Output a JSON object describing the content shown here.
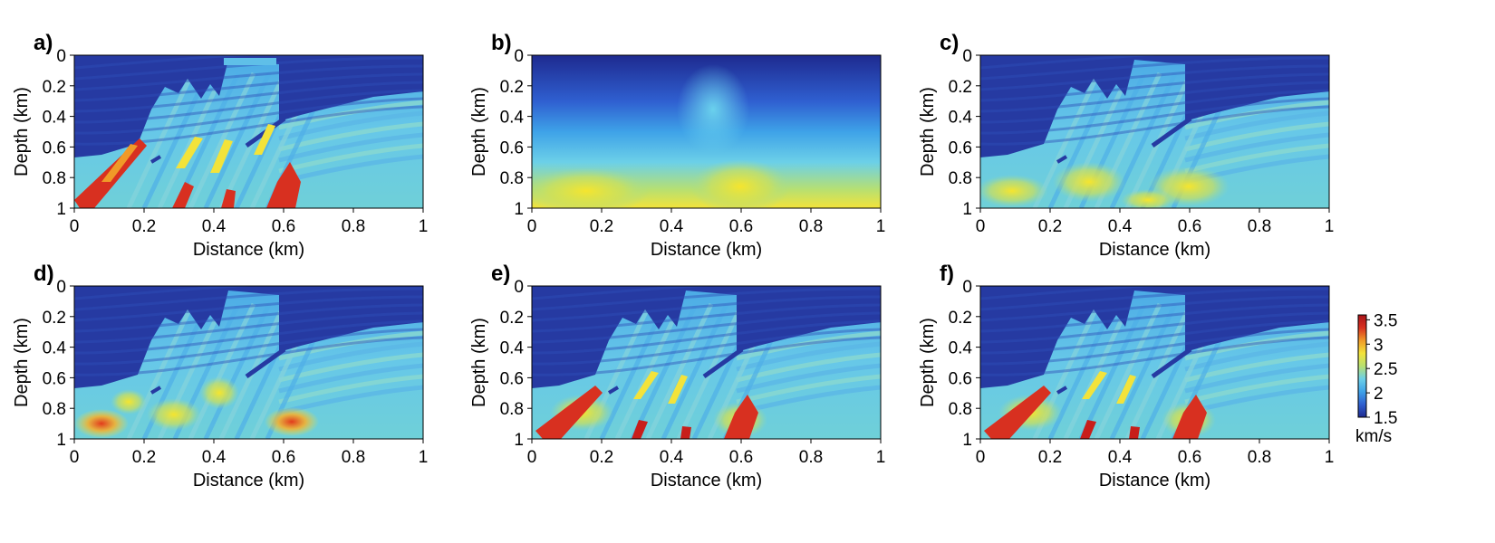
{
  "chart_data": {
    "type": "heatmap",
    "layout": "2x3 grid of velocity model panels",
    "x_label": "Distance (km)",
    "y_label": "Depth (km)",
    "x_ticks": [
      "0",
      "0.2",
      "0.4",
      "0.6",
      "0.8",
      "1"
    ],
    "y_ticks": [
      "0",
      "0.2",
      "0.4",
      "0.6",
      "0.8",
      "1"
    ],
    "xlim": [
      0,
      1
    ],
    "ylim": [
      0,
      1
    ],
    "y_axis_reversed": true,
    "colormap": "jet",
    "colorbar": {
      "range": [
        1.5,
        3.6
      ],
      "ticks": [
        "1.5",
        "2",
        "2.5",
        "3",
        "3.5"
      ],
      "unit": "km/s",
      "colors": [
        "#1e2a8f",
        "#2f5fd0",
        "#3ea2e8",
        "#6cd0e8",
        "#b8e070",
        "#f3e33a",
        "#f09a28",
        "#d83020",
        "#a8141a"
      ]
    },
    "panels": [
      {
        "label": "a)",
        "variant": "true"
      },
      {
        "label": "b)",
        "variant": "smooth"
      },
      {
        "label": "c)",
        "variant": "weak"
      },
      {
        "label": "d)",
        "variant": "blob"
      },
      {
        "label": "e)",
        "variant": "strong"
      },
      {
        "label": "f)",
        "variant": "strong"
      }
    ]
  }
}
